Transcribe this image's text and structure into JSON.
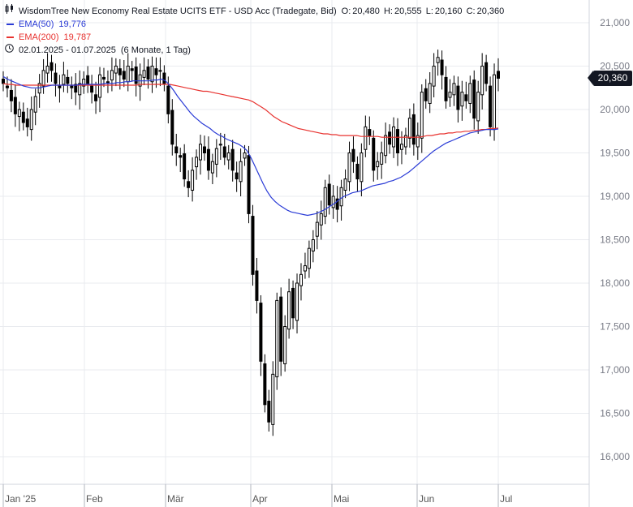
{
  "header": {
    "title": "WisdomTree New Economy Real Estate UCITS ETF - USD Acc (Tradegate, Bid)",
    "ohlc": {
      "o_label": "O:",
      "o": "20,480",
      "h_label": "H:",
      "h": "20,555",
      "l_label": "L:",
      "l": "20,160",
      "c_label": "C:",
      "c": "20,360"
    },
    "ema50_label": "EMA(50)",
    "ema50_value": "19,776",
    "ema200_label": "EMA(200)",
    "ema200_value": "19,787",
    "range_text": "02.01.2025 - 01.07.2025",
    "period_text": "(6 Monate, 1 Tag)"
  },
  "last_price_label": "20,360",
  "colors": {
    "ema50": "#2a3bd6",
    "ema200": "#e8322f",
    "candle": "#000000",
    "grid": "#e9ebef",
    "price_tag": "#131722"
  },
  "chart_data": {
    "type": "candlestick",
    "y_ticks": [
      "16,000",
      "16,500",
      "17,000",
      "17,500",
      "18,000",
      "18,500",
      "19,000",
      "19,500",
      "20,000",
      "20,500",
      "21,000"
    ],
    "y_tick_values": [
      16.0,
      16.5,
      17.0,
      17.5,
      18.0,
      18.5,
      19.0,
      19.5,
      20.0,
      20.5,
      21.0
    ],
    "ylim": [
      15.75,
      21.2
    ],
    "x_labels": [
      "Jan '25",
      "Feb",
      "Mär",
      "Apr",
      "Mai",
      "Jun",
      "Jul"
    ],
    "x_label_days": [
      0,
      20,
      40,
      61,
      81,
      102,
      122
    ],
    "xlim": [
      0,
      143
    ],
    "close": [
      20.3,
      20.25,
      20.1,
      19.95,
      20.0,
      19.85,
      19.8,
      20.0,
      20.15,
      20.3,
      20.45,
      20.5,
      20.45,
      20.3,
      20.25,
      20.4,
      20.3,
      20.25,
      20.2,
      20.3,
      20.35,
      20.3,
      20.2,
      20.1,
      20.4,
      20.35,
      20.3,
      20.45,
      20.5,
      20.4,
      20.35,
      20.5,
      20.45,
      20.3,
      20.4,
      20.45,
      20.35,
      20.5,
      20.4,
      20.45,
      20.3,
      19.95,
      19.6,
      19.5,
      19.45,
      19.2,
      19.1,
      19.3,
      19.45,
      19.6,
      19.5,
      19.3,
      19.4,
      19.55,
      19.6,
      19.45,
      19.5,
      19.3,
      19.2,
      19.4,
      19.5,
      18.8,
      18.1,
      17.8,
      17.1,
      16.6,
      16.4,
      16.95,
      17.8,
      17.1,
      17.5,
      17.9,
      17.6,
      18.0,
      18.1,
      18.2,
      18.4,
      18.5,
      18.7,
      18.8,
      19.1,
      18.9,
      19.0,
      18.85,
      19.1,
      19.2,
      19.5,
      19.4,
      19.2,
      19.5,
      19.8,
      19.7,
      19.3,
      19.4,
      19.5,
      19.7,
      19.6,
      19.8,
      19.5,
      19.6,
      19.7,
      19.9,
      19.6,
      19.7,
      20.2,
      20.1,
      20.3,
      20.5,
      20.6,
      20.4,
      20.1,
      20.2,
      20.3,
      20.0,
      20.2,
      20.1,
      20.3,
      19.9,
      20.2,
      20.5,
      20.3,
      19.8,
      20.4,
      20.36
    ],
    "ema50": [
      20.38,
      20.35,
      20.33,
      20.31,
      20.29,
      20.27,
      20.26,
      20.25,
      20.25,
      20.25,
      20.26,
      20.27,
      20.28,
      20.28,
      20.28,
      20.28,
      20.28,
      20.28,
      20.28,
      20.29,
      20.29,
      20.29,
      20.29,
      20.29,
      20.29,
      20.3,
      20.3,
      20.3,
      20.31,
      20.31,
      20.32,
      20.32,
      20.33,
      20.33,
      20.33,
      20.33,
      20.33,
      20.34,
      20.34,
      20.35,
      20.33,
      20.28,
      20.22,
      20.15,
      20.09,
      20.03,
      19.97,
      19.92,
      19.88,
      19.84,
      19.81,
      19.78,
      19.74,
      19.71,
      19.69,
      19.66,
      19.64,
      19.62,
      19.6,
      19.57,
      19.53,
      19.45,
      19.35,
      19.25,
      19.15,
      19.06,
      18.99,
      18.94,
      18.9,
      18.87,
      18.84,
      18.82,
      18.81,
      18.8,
      18.79,
      18.78,
      18.79,
      18.8,
      18.82,
      18.84,
      18.87,
      18.9,
      18.93,
      18.97,
      19.0,
      19.02,
      19.04,
      19.05,
      19.06,
      19.08,
      19.1,
      19.12,
      19.13,
      19.14,
      19.15,
      19.17,
      19.18,
      19.2,
      19.22,
      19.25,
      19.28,
      19.32,
      19.36,
      19.4,
      19.44,
      19.48,
      19.52,
      19.55,
      19.58,
      19.61,
      19.63,
      19.65,
      19.67,
      19.69,
      19.71,
      19.73,
      19.74,
      19.75,
      19.76,
      19.77,
      19.77,
      19.77,
      19.776
    ],
    "ema200": [
      20.3,
      20.29,
      20.29,
      20.28,
      20.28,
      20.28,
      20.28,
      20.28,
      20.28,
      20.28,
      20.28,
      20.28,
      20.28,
      20.28,
      20.28,
      20.28,
      20.28,
      20.28,
      20.28,
      20.28,
      20.28,
      20.28,
      20.28,
      20.28,
      20.28,
      20.28,
      20.28,
      20.28,
      20.28,
      20.28,
      20.28,
      20.28,
      20.28,
      20.29,
      20.29,
      20.29,
      20.29,
      20.29,
      20.29,
      20.29,
      20.29,
      20.28,
      20.27,
      20.26,
      20.25,
      20.24,
      20.23,
      20.22,
      20.21,
      20.21,
      20.2,
      20.19,
      20.18,
      20.17,
      20.16,
      20.15,
      20.14,
      20.13,
      20.12,
      20.11,
      20.09,
      20.06,
      20.03,
      20.0,
      19.96,
      19.92,
      19.89,
      19.86,
      19.84,
      19.82,
      19.8,
      19.78,
      19.77,
      19.76,
      19.75,
      19.74,
      19.73,
      19.72,
      19.72,
      19.71,
      19.71,
      19.7,
      19.7,
      19.7,
      19.7,
      19.7,
      19.69,
      19.69,
      19.69,
      19.69,
      19.69,
      19.68,
      19.68,
      19.68,
      19.68,
      19.68,
      19.68,
      19.68,
      19.68,
      19.68,
      19.68,
      19.69,
      19.7,
      19.7,
      19.71,
      19.72,
      19.72,
      19.73,
      19.73,
      19.74,
      19.74,
      19.75,
      19.75,
      19.76,
      19.76,
      19.77,
      19.77,
      19.78,
      19.78,
      19.787
    ]
  }
}
